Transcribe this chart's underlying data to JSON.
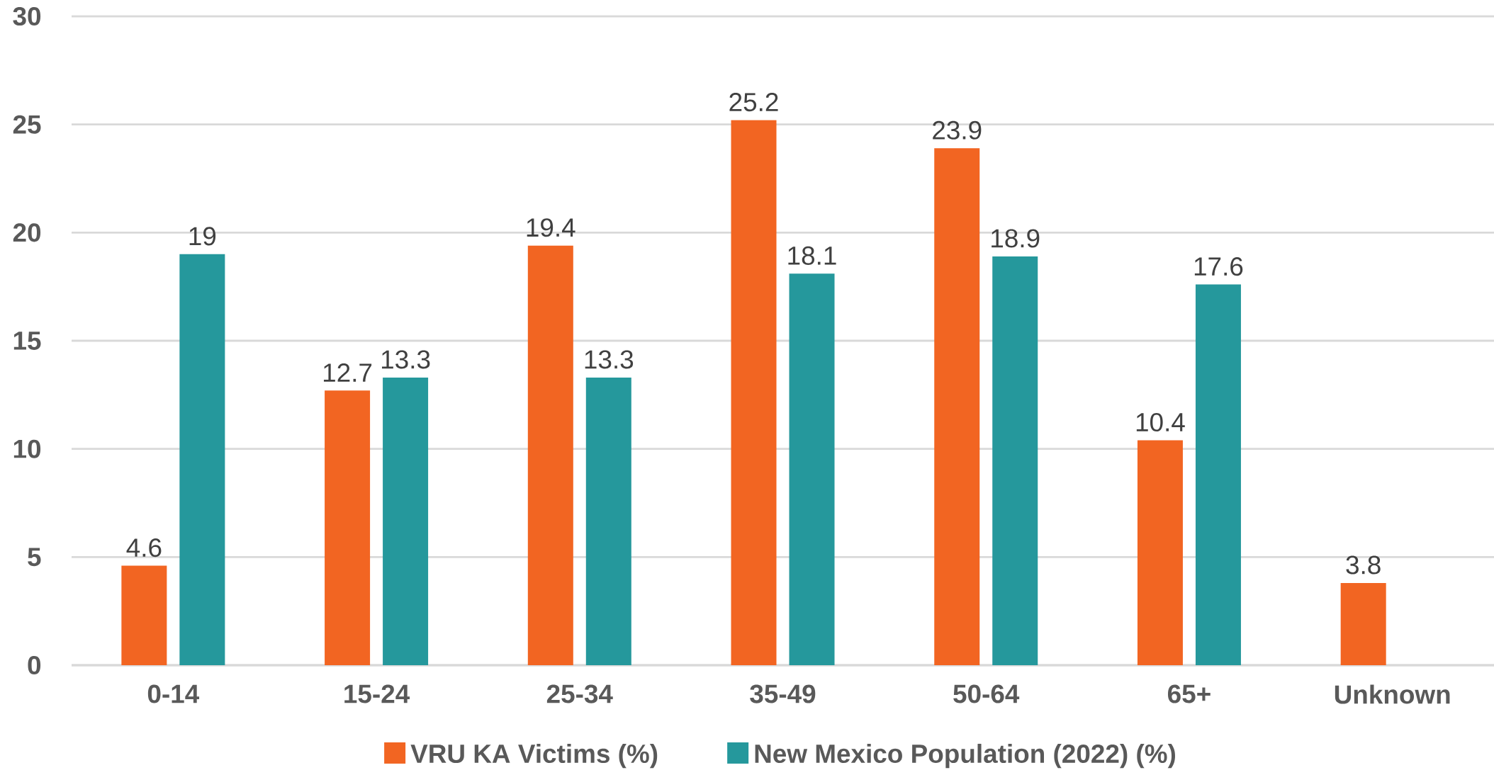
{
  "chart_data": {
    "type": "bar",
    "categories": [
      "0-14",
      "15-24",
      "25-34",
      "35-49",
      "50-64",
      "65+",
      "Unknown"
    ],
    "series": [
      {
        "name": "VRU KA Victims (%)",
        "color": "#f26522",
        "values": [
          4.6,
          12.7,
          19.4,
          25.2,
          23.9,
          10.4,
          3.8
        ]
      },
      {
        "name": "New Mexico Population (2022) (%)",
        "color": "#25989c",
        "values": [
          19,
          13.3,
          13.3,
          18.1,
          18.9,
          17.6,
          null
        ]
      }
    ],
    "ylim": [
      0,
      30
    ],
    "yticks": [
      0,
      5,
      10,
      15,
      20,
      25,
      30
    ],
    "grid": "y",
    "legend": "bottom",
    "data_labels": true
  }
}
